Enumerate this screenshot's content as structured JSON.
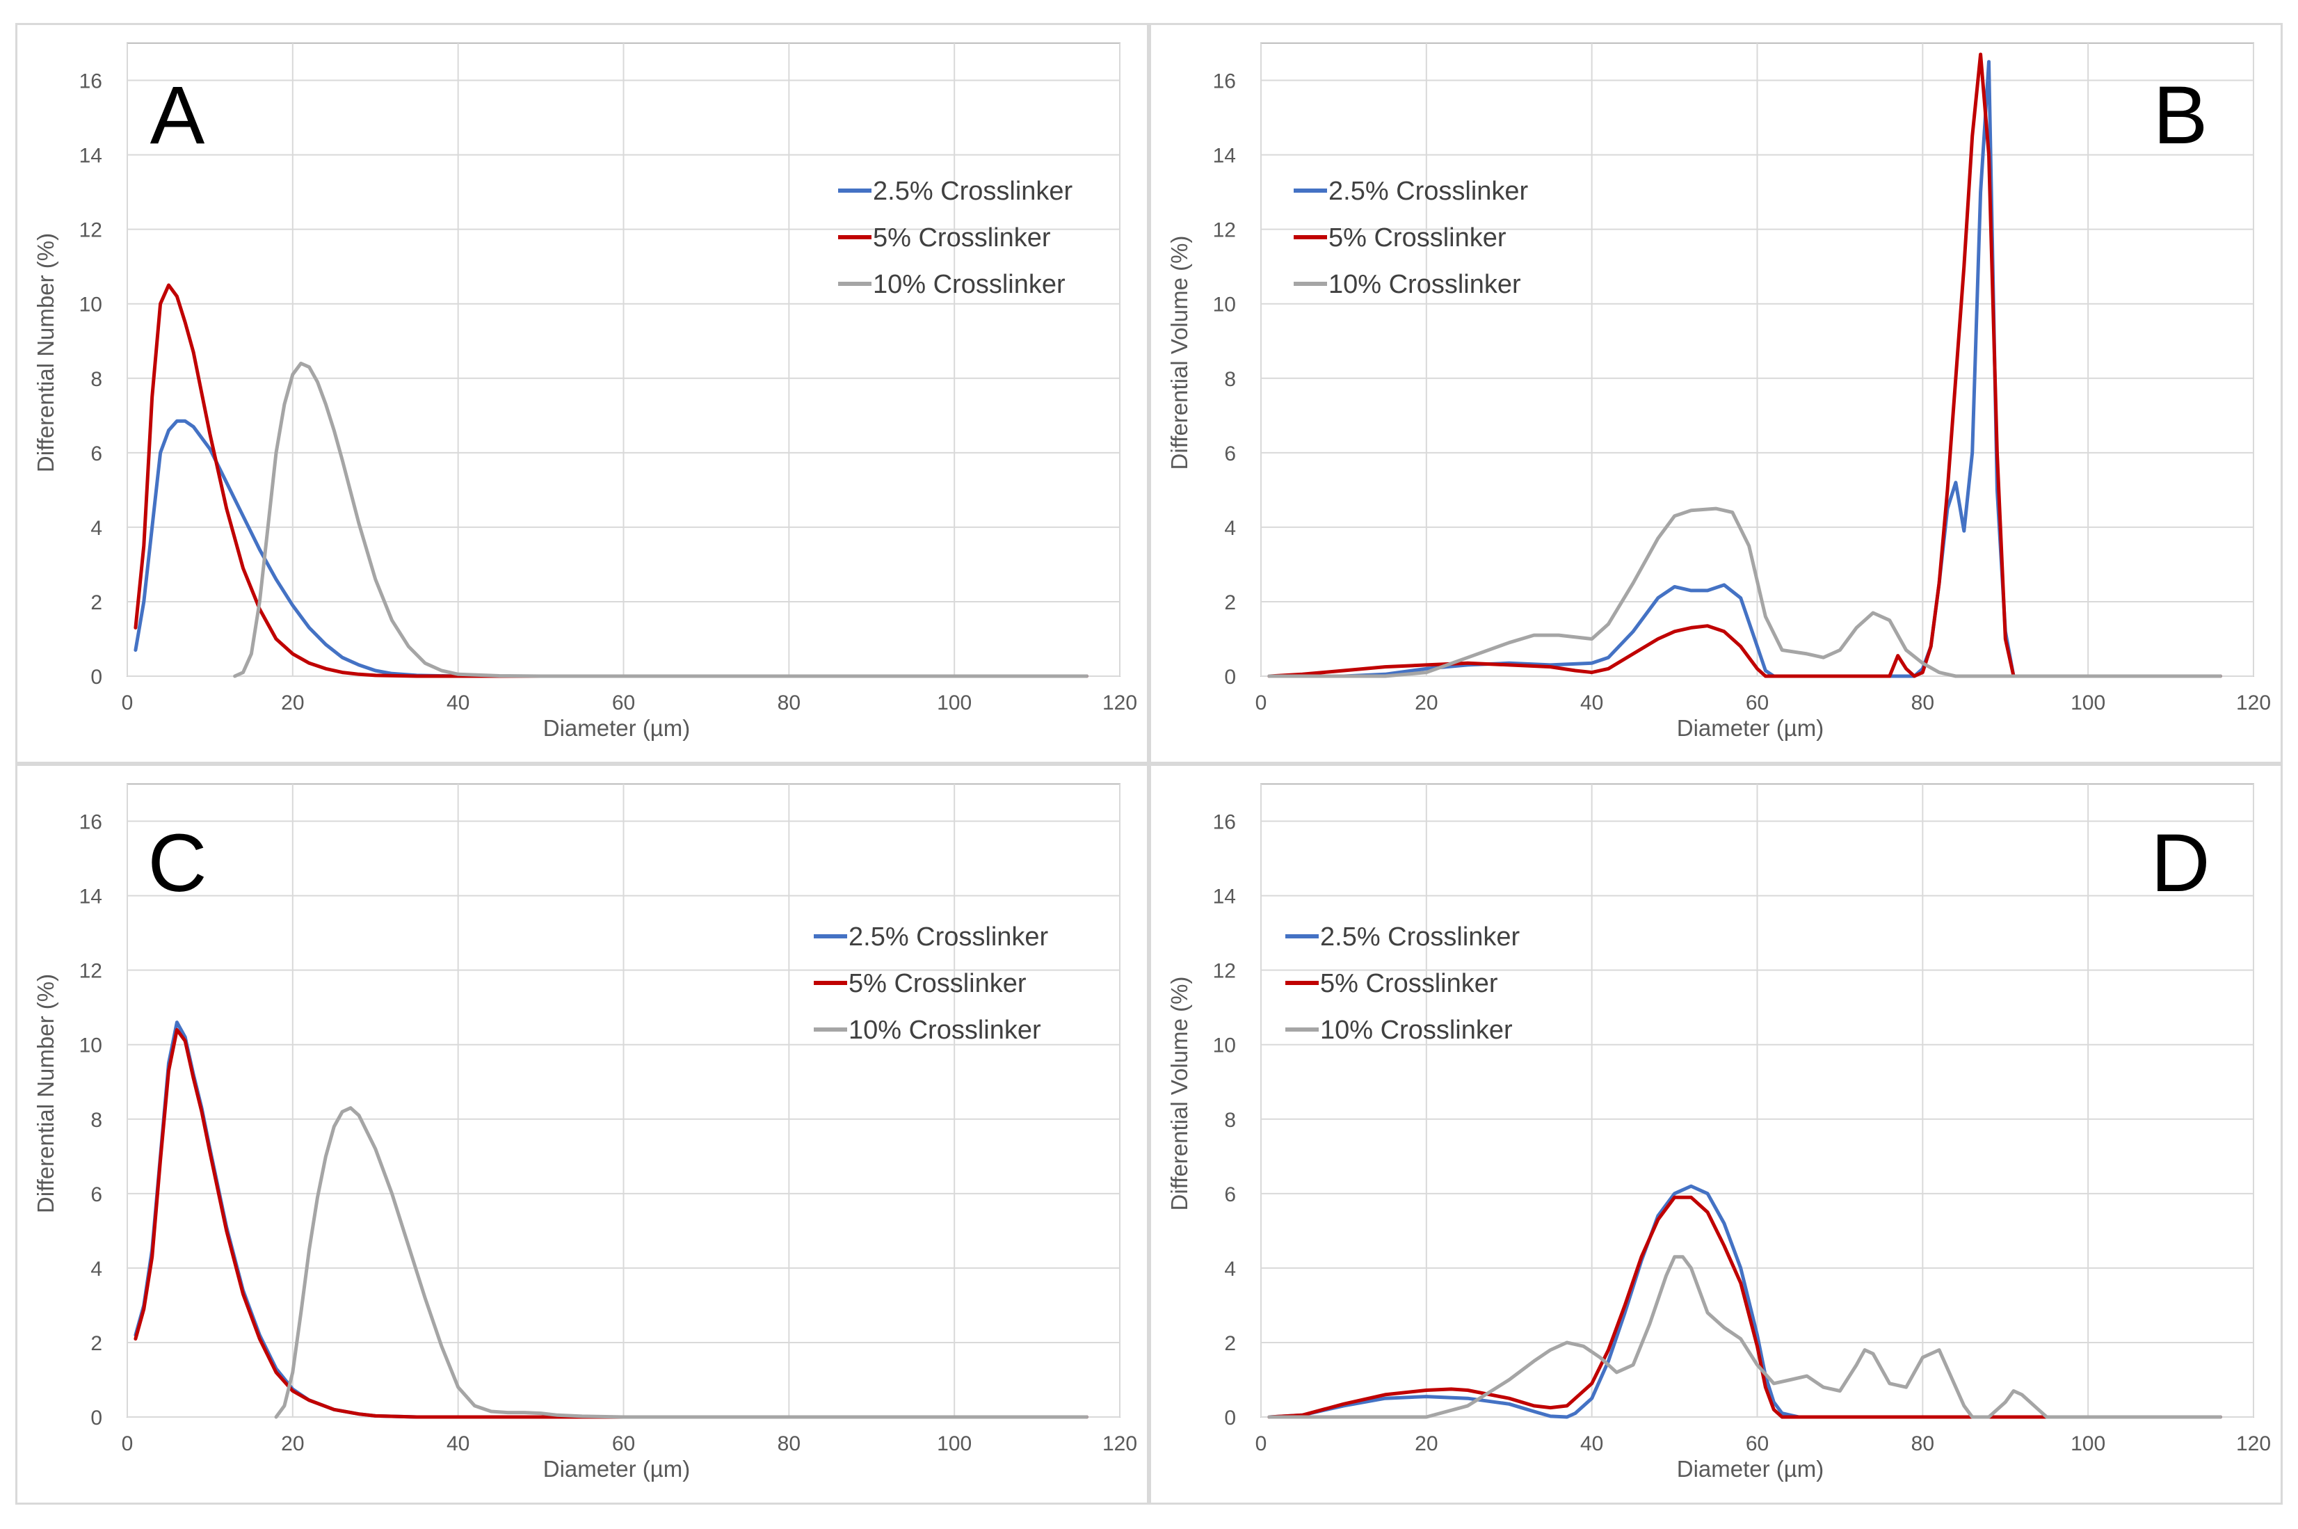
{
  "figure": {
    "background": "#ffffff"
  },
  "chart_data": [
    {
      "type": "line",
      "panel_label": "A",
      "xlabel": "Diameter (µm)",
      "ylabel": "Differential Number (%)",
      "xlim": [
        0,
        120
      ],
      "ylim": [
        0,
        17
      ],
      "xticks": [
        "0",
        "20",
        "40",
        "60",
        "80",
        "100",
        "120"
      ],
      "yticks": [
        "0",
        "2",
        "4",
        "6",
        "8",
        "10",
        "12",
        "14",
        "16"
      ],
      "grid": true,
      "legend_position": "top-right",
      "series": [
        {
          "name": "2.5% Crosslinker",
          "color": "#4472c4",
          "x": [
            1,
            2,
            3,
            4,
            5,
            6,
            7,
            8,
            10,
            12,
            14,
            16,
            18,
            20,
            22,
            24,
            26,
            28,
            30,
            32,
            35,
            40,
            45,
            50,
            116
          ],
          "y": [
            0.7,
            2.0,
            4.0,
            6.0,
            6.6,
            6.85,
            6.85,
            6.7,
            6.1,
            5.2,
            4.3,
            3.4,
            2.6,
            1.9,
            1.3,
            0.85,
            0.5,
            0.3,
            0.15,
            0.07,
            0.02,
            0,
            0,
            0,
            0
          ]
        },
        {
          "name": "5% Crosslinker",
          "color": "#c00000",
          "x": [
            1,
            2,
            3,
            4,
            5,
            6,
            7,
            8,
            9,
            10,
            12,
            14,
            16,
            18,
            20,
            22,
            24,
            26,
            28,
            30,
            35,
            40,
            50,
            116
          ],
          "y": [
            1.3,
            3.5,
            7.5,
            10.0,
            10.5,
            10.2,
            9.5,
            8.7,
            7.6,
            6.5,
            4.5,
            2.9,
            1.8,
            1.0,
            0.6,
            0.35,
            0.2,
            0.1,
            0.05,
            0.02,
            0,
            0,
            0,
            0
          ]
        },
        {
          "name": "10% Crosslinker",
          "color": "#a5a5a5",
          "x": [
            13,
            14,
            15,
            16,
            17,
            18,
            19,
            20,
            21,
            22,
            23,
            24,
            25,
            26,
            28,
            30,
            32,
            34,
            36,
            38,
            40,
            45,
            50,
            60,
            116
          ],
          "y": [
            0,
            0.1,
            0.6,
            2.0,
            4.0,
            6.0,
            7.3,
            8.1,
            8.4,
            8.3,
            7.9,
            7.3,
            6.6,
            5.8,
            4.1,
            2.6,
            1.5,
            0.8,
            0.35,
            0.15,
            0.05,
            0.01,
            0,
            0,
            0
          ]
        }
      ]
    },
    {
      "type": "line",
      "panel_label": "B",
      "xlabel": "Diameter (µm)",
      "ylabel": "Differential Volume (%)",
      "xlim": [
        0,
        120
      ],
      "ylim": [
        0,
        17
      ],
      "xticks": [
        "0",
        "20",
        "40",
        "60",
        "80",
        "100",
        "120"
      ],
      "yticks": [
        "0",
        "2",
        "4",
        "6",
        "8",
        "10",
        "12",
        "14",
        "16"
      ],
      "grid": true,
      "legend_position": "top-left",
      "series": [
        {
          "name": "2.5% Crosslinker",
          "color": "#4472c4",
          "x": [
            1,
            10,
            15,
            20,
            25,
            30,
            35,
            40,
            42,
            45,
            48,
            50,
            52,
            54,
            56,
            58,
            60,
            61,
            62,
            70,
            79,
            80,
            81,
            82,
            83,
            84,
            85,
            86,
            87,
            88,
            89,
            90,
            91,
            116
          ],
          "y": [
            0,
            0,
            0.05,
            0.2,
            0.3,
            0.35,
            0.3,
            0.35,
            0.5,
            1.2,
            2.1,
            2.4,
            2.3,
            2.3,
            2.45,
            2.1,
            0.8,
            0.15,
            0,
            0,
            0,
            0.2,
            0.8,
            2.5,
            4.5,
            5.2,
            3.9,
            6.0,
            13.0,
            16.5,
            5.0,
            1.2,
            0,
            0
          ]
        },
        {
          "name": "5% Crosslinker",
          "color": "#c00000",
          "x": [
            1,
            5,
            10,
            15,
            20,
            25,
            30,
            35,
            38,
            40,
            42,
            45,
            48,
            50,
            52,
            54,
            56,
            58,
            60,
            61,
            62,
            70,
            76,
            77,
            78,
            79,
            80,
            81,
            82,
            83,
            84,
            85,
            86,
            87,
            88,
            89,
            90,
            91,
            116
          ],
          "y": [
            0,
            0.05,
            0.15,
            0.25,
            0.3,
            0.35,
            0.3,
            0.25,
            0.15,
            0.1,
            0.2,
            0.6,
            1.0,
            1.2,
            1.3,
            1.35,
            1.2,
            0.8,
            0.2,
            0,
            0,
            0,
            0,
            0.55,
            0.2,
            0,
            0.1,
            0.8,
            2.5,
            5.0,
            8.0,
            11.0,
            14.5,
            16.7,
            14.0,
            6.0,
            1.0,
            0,
            0
          ]
        },
        {
          "name": "10% Crosslinker",
          "color": "#a5a5a5",
          "x": [
            1,
            15,
            20,
            25,
            30,
            33,
            36,
            40,
            42,
            45,
            48,
            50,
            52,
            55,
            57,
            59,
            61,
            63,
            66,
            68,
            70,
            72,
            74,
            76,
            78,
            80,
            82,
            84,
            116
          ],
          "y": [
            0,
            0,
            0.1,
            0.5,
            0.9,
            1.1,
            1.1,
            1.0,
            1.4,
            2.5,
            3.7,
            4.3,
            4.45,
            4.5,
            4.4,
            3.5,
            1.6,
            0.7,
            0.6,
            0.5,
            0.7,
            1.3,
            1.7,
            1.5,
            0.7,
            0.35,
            0.1,
            0,
            0
          ]
        }
      ]
    },
    {
      "type": "line",
      "panel_label": "C",
      "xlabel": "Diameter (µm)",
      "ylabel": "Differential Number (%)",
      "xlim": [
        0,
        120
      ],
      "ylim": [
        0,
        17
      ],
      "xticks": [
        "0",
        "20",
        "40",
        "60",
        "80",
        "100",
        "120"
      ],
      "yticks": [
        "0",
        "2",
        "4",
        "6",
        "8",
        "10",
        "12",
        "14",
        "16"
      ],
      "grid": true,
      "legend_position": "top-right",
      "series": [
        {
          "name": "2.5% Crosslinker",
          "color": "#4472c4",
          "x": [
            1,
            2,
            3,
            4,
            5,
            6,
            7,
            8,
            9,
            10,
            12,
            14,
            16,
            18,
            20,
            22,
            25,
            28,
            30,
            35,
            40,
            116
          ],
          "y": [
            2.2,
            3.0,
            4.5,
            7.0,
            9.5,
            10.6,
            10.2,
            9.2,
            8.3,
            7.2,
            5.1,
            3.4,
            2.2,
            1.3,
            0.75,
            0.45,
            0.2,
            0.08,
            0.03,
            0,
            0,
            0
          ]
        },
        {
          "name": "5% Crosslinker",
          "color": "#c00000",
          "x": [
            1,
            2,
            3,
            4,
            5,
            6,
            7,
            8,
            9,
            10,
            12,
            14,
            16,
            18,
            20,
            22,
            25,
            28,
            30,
            35,
            40,
            50,
            116
          ],
          "y": [
            2.1,
            2.9,
            4.3,
            6.9,
            9.3,
            10.4,
            10.1,
            9.1,
            8.2,
            7.1,
            5.0,
            3.3,
            2.1,
            1.2,
            0.7,
            0.45,
            0.2,
            0.08,
            0.03,
            0,
            0,
            0,
            0
          ]
        },
        {
          "name": "10% Crosslinker",
          "color": "#a5a5a5",
          "x": [
            18,
            19,
            20,
            21,
            22,
            23,
            24,
            25,
            26,
            27,
            28,
            30,
            32,
            34,
            36,
            38,
            40,
            42,
            44,
            46,
            48,
            50,
            52,
            55,
            60,
            116
          ],
          "y": [
            0,
            0.3,
            1.2,
            2.8,
            4.5,
            5.9,
            7.0,
            7.8,
            8.2,
            8.3,
            8.1,
            7.2,
            6.0,
            4.6,
            3.2,
            1.9,
            0.8,
            0.3,
            0.15,
            0.12,
            0.12,
            0.1,
            0.05,
            0.02,
            0,
            0
          ]
        }
      ]
    },
    {
      "type": "line",
      "panel_label": "D",
      "xlabel": "Diameter (µm)",
      "ylabel": "Differential Volume (%)",
      "xlim": [
        0,
        120
      ],
      "ylim": [
        0,
        17
      ],
      "xticks": [
        "0",
        "20",
        "40",
        "60",
        "80",
        "100",
        "120"
      ],
      "yticks": [
        "0",
        "2",
        "4",
        "6",
        "8",
        "10",
        "12",
        "14",
        "16"
      ],
      "grid": true,
      "legend_position": "top-left",
      "series": [
        {
          "name": "2.5% Crosslinker",
          "color": "#4472c4",
          "x": [
            1,
            5,
            10,
            15,
            20,
            25,
            30,
            33,
            35,
            37,
            38,
            40,
            42,
            44,
            46,
            48,
            50,
            52,
            54,
            56,
            58,
            60,
            61,
            62,
            63,
            65,
            116
          ],
          "y": [
            0,
            0.05,
            0.3,
            0.5,
            0.55,
            0.5,
            0.35,
            0.15,
            0.02,
            0,
            0.1,
            0.5,
            1.5,
            2.8,
            4.2,
            5.4,
            6.0,
            6.2,
            6.0,
            5.2,
            4.0,
            2.2,
            1.1,
            0.4,
            0.1,
            0,
            0
          ]
        },
        {
          "name": "5% Crosslinker",
          "color": "#c00000",
          "x": [
            1,
            5,
            10,
            15,
            20,
            23,
            25,
            30,
            33,
            35,
            37,
            38,
            40,
            42,
            44,
            46,
            48,
            50,
            52,
            54,
            56,
            58,
            60,
            61,
            62,
            63,
            65,
            80,
            85,
            90,
            95,
            116
          ],
          "y": [
            0,
            0.05,
            0.35,
            0.6,
            0.72,
            0.75,
            0.72,
            0.5,
            0.3,
            0.25,
            0.3,
            0.5,
            0.9,
            1.8,
            3.0,
            4.3,
            5.3,
            5.9,
            5.9,
            5.5,
            4.6,
            3.6,
            1.9,
            0.8,
            0.2,
            0,
            0,
            0,
            0,
            0,
            0,
            0
          ]
        },
        {
          "name": "10% Crosslinker",
          "color": "#a5a5a5",
          "x": [
            1,
            20,
            25,
            30,
            33,
            35,
            37,
            39,
            41,
            43,
            45,
            47,
            49,
            50,
            51,
            52,
            54,
            56,
            58,
            60,
            62,
            64,
            66,
            68,
            70,
            72,
            73,
            74,
            76,
            78,
            80,
            82,
            83,
            85,
            86,
            88,
            90,
            91,
            92,
            94,
            95,
            116
          ],
          "y": [
            0,
            0,
            0.3,
            1.0,
            1.5,
            1.8,
            2.0,
            1.9,
            1.6,
            1.2,
            1.4,
            2.5,
            3.8,
            4.3,
            4.3,
            4.0,
            2.8,
            2.4,
            2.1,
            1.4,
            0.9,
            1.0,
            1.1,
            0.8,
            0.7,
            1.4,
            1.8,
            1.7,
            0.9,
            0.8,
            1.6,
            1.8,
            1.3,
            0.3,
            0,
            0,
            0.4,
            0.7,
            0.6,
            0.2,
            0,
            0
          ]
        }
      ]
    }
  ]
}
